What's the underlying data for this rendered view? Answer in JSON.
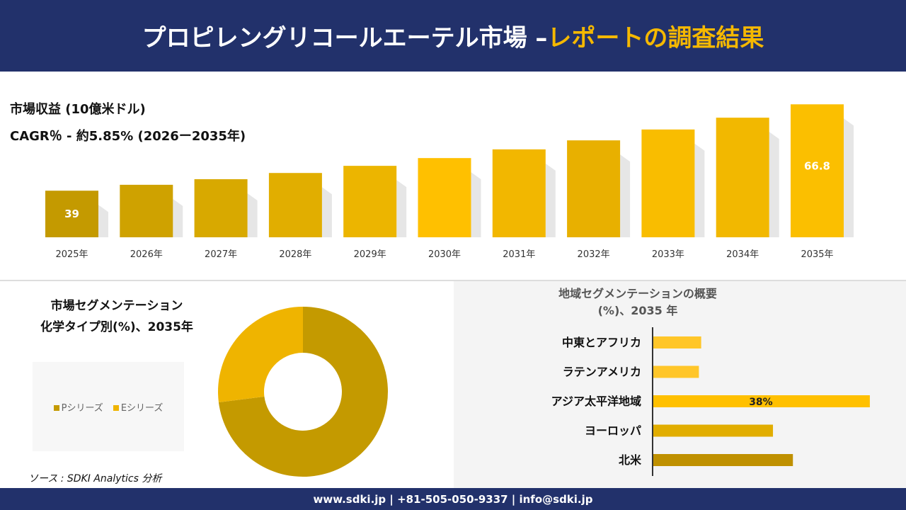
{
  "header": {
    "title_main": "プロピレングリコールエーテル市場 –",
    "title_highlight": "レポートの調査結果"
  },
  "revenue": {
    "label": "市場収益 (10億米ドル)",
    "cagr": "CAGR％ - 約5.85% (2026ー2035年)"
  },
  "chart_data": [
    {
      "type": "bar",
      "title": "市場収益 (10億米ドル)",
      "categories": [
        "2025年",
        "2026年",
        "2027年",
        "2028年",
        "2029年",
        "2030年",
        "2031年",
        "2032年",
        "2033年",
        "2034年",
        "2035年"
      ],
      "values": [
        39,
        40.9,
        42.7,
        44.7,
        47.0,
        49.5,
        52.3,
        55.2,
        58.7,
        62.5,
        66.8
      ],
      "data_labels": {
        "0": "39",
        "10": "66.8"
      },
      "colors": [
        "#c49a00",
        "#cfa200",
        "#d8a900",
        "#e1ae00",
        "#ecb500",
        "#ffc000",
        "#f2b700",
        "#e8b000",
        "#f9bd00",
        "#f2b800",
        "#fbbf00"
      ]
    },
    {
      "type": "pie",
      "donut": true,
      "title": "市場セグメンテーション 化学タイプ別(%)、2035年",
      "series": [
        {
          "name": "Pシリーズ",
          "value": 73,
          "color": "#c49a00"
        },
        {
          "name": "Eシリーズ",
          "value": 27,
          "color": "#efb400"
        }
      ]
    },
    {
      "type": "bar",
      "orientation": "horizontal",
      "title": "地域セグメンテーションの概要 (%)、2035 年",
      "categories": [
        "中東とアフリカ",
        "ラテンアメリカ",
        "アジア太平洋地域",
        "ヨーロッパ",
        "北米"
      ],
      "values": [
        8.4,
        8,
        38,
        21,
        24.5
      ],
      "data_labels": {
        "2": "38%"
      },
      "colors": [
        "#ffc629",
        "#ffc629",
        "#ffc000",
        "#e1ad00",
        "#bf9000"
      ]
    }
  ],
  "segment": {
    "title1": "市場セグメンテーション",
    "title2": "化学タイプ別(%)、2035年",
    "legend": [
      "Pシリーズ",
      "Eシリーズ"
    ]
  },
  "region": {
    "title1": "地域セグメンテーションの概要",
    "title2": "(%)、2035 年"
  },
  "source": "ソース : SDKI Analytics 分析",
  "footer": "www.sdki.jp | +81-505-050-9337 | info@sdki.jp"
}
